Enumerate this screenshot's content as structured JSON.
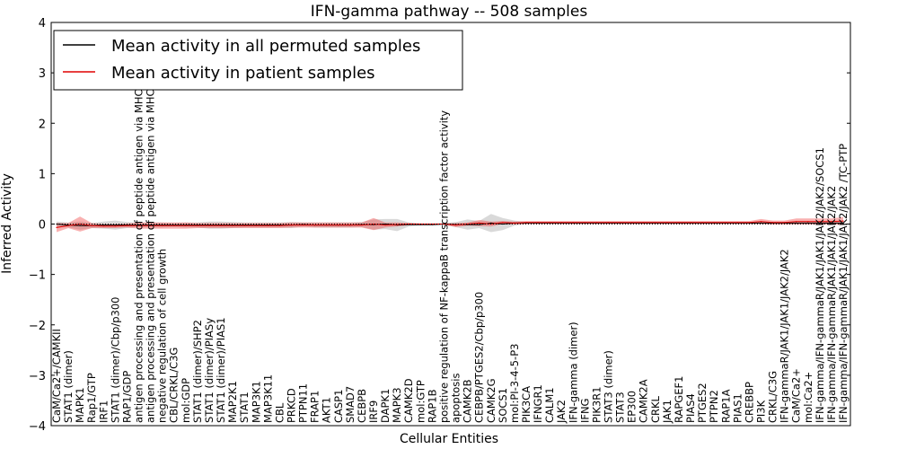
{
  "chart_data": {
    "type": "line",
    "title": "IFN-gamma pathway -- 508 samples",
    "xlabel": "Cellular Entities",
    "ylabel": "Inferred Activity",
    "ylim": [
      -4,
      4
    ],
    "yticks": [
      "4",
      "3",
      "2",
      "1",
      "0",
      "−1",
      "−2",
      "−3",
      "−4"
    ],
    "legend": {
      "placement": "top-left",
      "entries": [
        {
          "label": "Mean activity in all permuted samples",
          "color": "#000000"
        },
        {
          "label": "Mean activity in patient samples",
          "color": "#ff0000"
        }
      ]
    },
    "categories": [
      "CaM/Ca2+/CAMKII",
      "STAT1 (dimer)",
      "MAPK1",
      "Rap1/GTP",
      "IRF1",
      "STAT1 (dimer)/Cbp/p300",
      "RAP1/GDP",
      "antigen processing and presentation of peptide antigen via MHC class I",
      "antigen processing and presentation of peptide antigen via MHC class II",
      "negative regulation of cell growth",
      "CBL/CRKL/C3G",
      "mol:GDP",
      "STAT1 (dimer)/SHP2",
      "STAT1 (dimer)/PIASy",
      "STAT1 (dimer)/PIAS1",
      "MAP2K1",
      "STAT1",
      "MAP3K1",
      "MAP3K11",
      "CBL",
      "PRKCD",
      "PTPN11",
      "FRAP1",
      "AKT1",
      "CASP1",
      "SMAD7",
      "CEBPB",
      "IRF9",
      "DAPK1",
      "MAPK3",
      "CAMK2D",
      "mol:GTP",
      "RAP1B",
      "positive regulation of NF-kappaB transcription factor activity",
      "apoptosis",
      "CAMK2B",
      "CEBPB/PTGES2/Cbp/p300",
      "CAMK2G",
      "SOCS1",
      "mol:PI-3-4-5-P3",
      "PIK3CA",
      "IFNGR1",
      "CALM1",
      "JAK2",
      "IFN-gamma (dimer)",
      "IFNG",
      "PIK3R1",
      "STAT3 (dimer)",
      "STAT3",
      "EP300",
      "CAMK2A",
      "CRKL",
      "JAK1",
      "RAPGEF1",
      "PIAS4",
      "PTGES2",
      "PTPN2",
      "RAP1A",
      "PIAS1",
      "CREBBP",
      "PI3K",
      "CRKL/C3G",
      "IFN-gammaR/JAK1/JAK1/JAK2/JAK2",
      "CaM/Ca2+",
      "mol:Ca2+",
      "IFN-gamma/IFN-gammaR/JAK1/JAK1/JAK2/JAK2/SOCS1",
      "IFN-gamma/IFN-gammaR/JAK1/JAK1/JAK2/JAK2",
      "IFN-gamma/IFN-gammaR/JAK1/JAK1/JAK2/JAK2 /TC-PTP"
    ],
    "series": [
      {
        "name": "Mean activity in all permuted samples",
        "color": "#000000",
        "values": [
          0.0,
          -0.02,
          -0.03,
          -0.03,
          -0.02,
          -0.02,
          -0.02,
          -0.02,
          -0.02,
          -0.02,
          -0.02,
          -0.02,
          -0.02,
          -0.02,
          -0.02,
          -0.02,
          -0.02,
          -0.02,
          -0.02,
          -0.02,
          -0.02,
          -0.01,
          -0.02,
          -0.02,
          -0.02,
          -0.02,
          -0.01,
          -0.01,
          0.0,
          -0.02,
          -0.01,
          -0.01,
          -0.01,
          0.0,
          -0.01,
          -0.01,
          -0.01,
          0.02,
          0.0,
          0.02,
          0.02,
          0.02,
          0.02,
          0.02,
          0.02,
          0.02,
          0.02,
          0.02,
          0.02,
          0.02,
          0.02,
          0.02,
          0.02,
          0.02,
          0.02,
          0.02,
          0.02,
          0.02,
          0.02,
          0.02,
          0.02,
          0.02,
          0.02,
          0.02,
          0.02,
          0.02,
          0.02,
          0.02
        ],
        "band": [
          0.05,
          0.05,
          0.08,
          0.05,
          0.07,
          0.09,
          0.06,
          0.04,
          0.05,
          0.05,
          0.04,
          0.05,
          0.05,
          0.07,
          0.07,
          0.06,
          0.05,
          0.05,
          0.05,
          0.05,
          0.06,
          0.04,
          0.05,
          0.05,
          0.05,
          0.05,
          0.05,
          0.1,
          0.1,
          0.12,
          0.04,
          0.02,
          0.02,
          0.02,
          0.05,
          0.1,
          0.07,
          0.18,
          0.12,
          0.05,
          0.02,
          0.02,
          0.02,
          0.02,
          0.02,
          0.02,
          0.02,
          0.02,
          0.02,
          0.02,
          0.02,
          0.02,
          0.02,
          0.02,
          0.02,
          0.02,
          0.02,
          0.02,
          0.02,
          0.02,
          0.02,
          0.02,
          0.02,
          0.02,
          0.02,
          0.02,
          0.02,
          0.02
        ]
      },
      {
        "name": "Mean activity in patient samples",
        "color": "#ff0000",
        "values": [
          -0.07,
          -0.03,
          0.0,
          -0.03,
          -0.04,
          -0.04,
          -0.03,
          -0.03,
          -0.03,
          -0.03,
          -0.03,
          -0.03,
          -0.03,
          -0.03,
          -0.03,
          -0.03,
          -0.03,
          -0.03,
          -0.03,
          -0.03,
          -0.02,
          -0.02,
          -0.02,
          -0.02,
          -0.02,
          -0.02,
          -0.02,
          0.0,
          -0.02,
          -0.01,
          0.0,
          0.0,
          0.0,
          0.0,
          -0.02,
          0.0,
          0.02,
          0.0,
          0.03,
          0.02,
          0.03,
          0.03,
          0.03,
          0.03,
          0.03,
          0.03,
          0.03,
          0.03,
          0.03,
          0.03,
          0.03,
          0.03,
          0.03,
          0.03,
          0.03,
          0.03,
          0.03,
          0.03,
          0.03,
          0.03,
          0.05,
          0.03,
          0.03,
          0.05,
          0.05,
          0.05,
          0.05,
          0.06
        ],
        "band": [
          0.09,
          0.05,
          0.15,
          0.05,
          0.04,
          0.04,
          0.04,
          0.06,
          0.06,
          0.06,
          0.06,
          0.06,
          0.05,
          0.05,
          0.05,
          0.05,
          0.05,
          0.05,
          0.05,
          0.05,
          0.05,
          0.05,
          0.05,
          0.05,
          0.05,
          0.05,
          0.05,
          0.12,
          0.05,
          0.04,
          0.02,
          0.01,
          0.01,
          0.01,
          0.04,
          0.03,
          0.06,
          0.05,
          0.03,
          0.03,
          0.03,
          0.03,
          0.03,
          0.03,
          0.03,
          0.03,
          0.03,
          0.03,
          0.03,
          0.03,
          0.03,
          0.03,
          0.03,
          0.03,
          0.03,
          0.03,
          0.03,
          0.03,
          0.03,
          0.03,
          0.05,
          0.04,
          0.04,
          0.06,
          0.06,
          0.06,
          0.06,
          0.08
        ]
      }
    ]
  }
}
